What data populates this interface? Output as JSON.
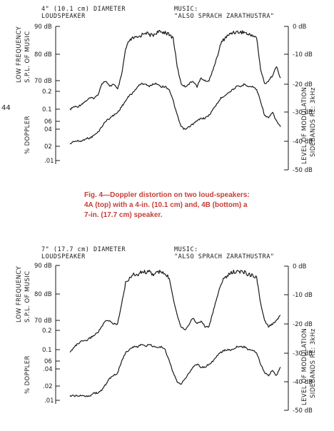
{
  "page_number": "44",
  "caption": "Fig. 4—Doppler distortion on two loud-speakers: 4A (top) with a 4-in. (10.1 cm) and, 4B (bottom) a 7-in. (17.7 cm) speaker.",
  "colors": {
    "ink": "#1a1a1a",
    "caption": "#c53e38",
    "paper": "#ffffff"
  },
  "chart_data": [
    {
      "type": "line",
      "title_left_1": "4\" (10.1 cm) DIAMETER",
      "title_left_2": "LOUDSPEAKER",
      "title_right_1": "MUSIC:",
      "title_right_2": "\"ALSO SPRACH ZARATHUSTRA\"",
      "left_upper_label_1": "LOW FREQUENCY",
      "left_upper_label_2": "S.P.L. OF MUSIC",
      "left_upper_ticks": [
        "90 dB",
        "80 dB",
        "70 dB"
      ],
      "left_lower_label": "% DOPPLER",
      "left_lower_ticks": [
        "0.2",
        "0.1",
        "06",
        "04",
        "02",
        ".01"
      ],
      "right_label_1": "LEVEL OF MODULATION",
      "right_label_2": "SIDEBANDS RE: 3kHz",
      "right_ticks": [
        "0 dB",
        "-10 dB",
        "-20 dB",
        "-30 dB",
        "-40 dB",
        "-50 dB"
      ],
      "ylim_right_db": [
        -50,
        0
      ],
      "grid": false,
      "series": [
        {
          "values": [
            -29,
            -28,
            -28,
            -27,
            -26,
            -25,
            -25,
            -24,
            -20,
            -19,
            -21,
            -20,
            -22,
            -17,
            -8,
            -5,
            -4,
            -4,
            -3,
            -2,
            -3,
            -3,
            -2,
            -2,
            -2,
            -3,
            -4,
            -14,
            -20,
            -21,
            -20,
            -19,
            -21,
            -18,
            -19,
            -19,
            -15,
            -11,
            -6,
            -4,
            -3,
            -2,
            -2,
            -2,
            -2,
            -3,
            -3,
            -4,
            -15,
            -20,
            -19,
            -17,
            -14,
            -18
          ]
        },
        {
          "values": [
            -41,
            -40,
            -40,
            -40,
            -39,
            -39,
            -38,
            -37,
            -35,
            -33,
            -32,
            -31,
            -30,
            -28,
            -26,
            -24,
            -23,
            -21,
            -20,
            -20,
            -21,
            -20,
            -20,
            -21,
            -21,
            -22,
            -26,
            -31,
            -35,
            -36,
            -35,
            -34,
            -33,
            -32,
            -32,
            -31,
            -29,
            -27,
            -25,
            -24,
            -23,
            -22,
            -21,
            -21,
            -20,
            -21,
            -21,
            -22,
            -26,
            -31,
            -32,
            -30,
            -33,
            -35
          ]
        }
      ]
    },
    {
      "type": "line",
      "title_left_1": "7\" (17.7 cm) DIAMETER",
      "title_left_2": "LOUDSPEAKER",
      "title_right_1": "MUSIC:",
      "title_right_2": "\"ALSO SPRACH ZARATHUSTRA\"",
      "left_upper_label_1": "LOW FREQUENCY",
      "left_upper_label_2": "S.P.L. OF MUSIC",
      "left_upper_ticks": [
        "90 dB",
        "80 dB",
        "70 dB"
      ],
      "left_lower_label": "% DOPPLER",
      "left_lower_ticks": [
        "0.2",
        "0.1",
        "06",
        ".04",
        ".02",
        ".01"
      ],
      "right_label_1": "LEVEL OF MODULATION",
      "right_label_2": "SIDEBANDS RE: 3kHz",
      "right_ticks": [
        "0 dB",
        "-10 dB",
        "-20 dB",
        "-30 dB",
        "-40 dB",
        "-50 dB"
      ],
      "ylim_right_db": [
        -50,
        0
      ],
      "grid": false,
      "series": [
        {
          "values": [
            -30,
            -28,
            -27,
            -26,
            -26,
            -25,
            -24,
            -23,
            -21,
            -19,
            -19,
            -20,
            -20,
            -13,
            -6,
            -4,
            -3,
            -3,
            -2,
            -2,
            -2,
            -3,
            -2,
            -2,
            -3,
            -4,
            -11,
            -17,
            -21,
            -22,
            -20,
            -18,
            -20,
            -19,
            -21,
            -21,
            -16,
            -11,
            -6,
            -4,
            -3,
            -2,
            -2,
            -2,
            -2,
            -3,
            -3,
            -4,
            -13,
            -19,
            -21,
            -20,
            -19,
            -17
          ]
        },
        {
          "values": [
            -45,
            -45,
            -45,
            -45,
            -45,
            -45,
            -44,
            -44,
            -43,
            -41,
            -39,
            -38,
            -37,
            -33,
            -30,
            -29,
            -28,
            -28,
            -27,
            -28,
            -27,
            -28,
            -28,
            -28,
            -29,
            -33,
            -37,
            -40,
            -41,
            -39,
            -37,
            -35,
            -34,
            -35,
            -35,
            -34,
            -33,
            -31,
            -30,
            -29,
            -29,
            -29,
            -28,
            -28,
            -28,
            -29,
            -29,
            -30,
            -34,
            -37,
            -38,
            -36,
            -38,
            -35
          ]
        }
      ]
    }
  ]
}
